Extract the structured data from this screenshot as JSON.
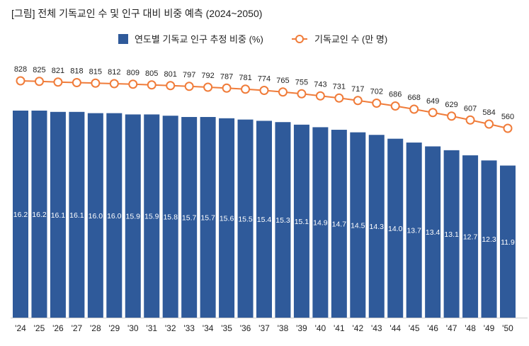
{
  "title": "[그림] 전체 기독교인 수 및 인구 대비 비중 예측 (2024~2050)",
  "legend": {
    "bar_label": "연도별 기독교 인구 추정 비중 (%)",
    "line_label": "기독교인 수 (만 명)"
  },
  "colors": {
    "bar": "#2F5A9A",
    "line": "#F07C3A",
    "axis": "#cccccc"
  },
  "chart_data": {
    "type": "bar+line",
    "title": "[그림] 전체 기독교인 수 및 인구 대비 비중 예측 (2024~2050)",
    "xlabel": "",
    "categories": [
      "'24",
      "'25",
      "'26",
      "'27",
      "'28",
      "'29",
      "'30",
      "'31",
      "'32",
      "'33",
      "'34",
      "'35",
      "'36",
      "'37",
      "'38",
      "'39",
      "'40",
      "'41",
      "'42",
      "'43",
      "'44",
      "'45",
      "'46",
      "'47",
      "'48",
      "'49",
      "'50"
    ],
    "series": [
      {
        "name": "연도별 기독교 인구 추정 비중 (%)",
        "type": "bar",
        "axis": "left",
        "values": [
          16.2,
          16.2,
          16.1,
          16.1,
          16.0,
          16.0,
          15.9,
          15.9,
          15.8,
          15.7,
          15.7,
          15.6,
          15.5,
          15.4,
          15.3,
          15.1,
          14.9,
          14.7,
          14.5,
          14.3,
          14.0,
          13.7,
          13.4,
          13.1,
          12.7,
          12.3,
          11.9
        ]
      },
      {
        "name": "기독교인 수 (만 명)",
        "type": "line",
        "axis": "right",
        "values": [
          828,
          825,
          821,
          818,
          815,
          812,
          809,
          805,
          801,
          797,
          792,
          787,
          781,
          774,
          765,
          755,
          743,
          731,
          717,
          702,
          686,
          668,
          649,
          629,
          607,
          584,
          560
        ]
      }
    ],
    "bar_ylim": [
      0,
      16.2
    ],
    "line_ylim": [
      560,
      828
    ],
    "grid": false,
    "legend_position": "top-center",
    "data_labels": true
  }
}
